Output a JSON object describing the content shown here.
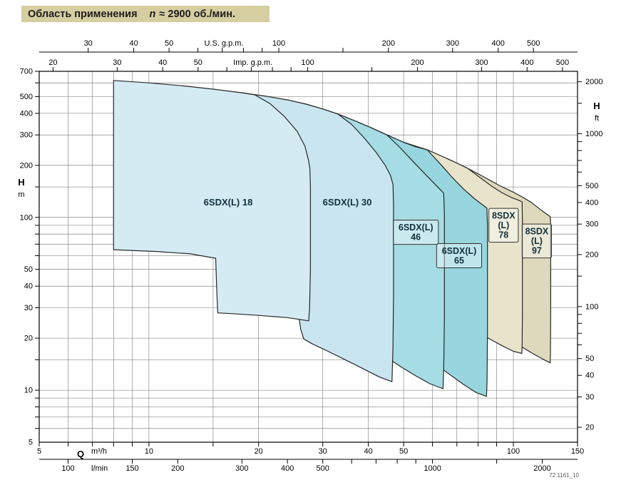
{
  "title": {
    "main": "Область применения",
    "n": "n",
    "rpm": "≈ 2900 об./мин."
  },
  "watermark": "72.1161_10",
  "chart_data": {
    "type": "area",
    "description": "Pump application range chart, log-log axes, head H vs flow Q at n ≈ 2900 rpm",
    "axes": {
      "q_range": [
        5,
        150
      ],
      "h_range": [
        5,
        700
      ],
      "top_us": {
        "title": "U.S. g.p.m.",
        "per_m3h": 4.403,
        "ticks": [
          30,
          40,
          50,
          60,
          70,
          80,
          90,
          100,
          150,
          200,
          300,
          400,
          500
        ],
        "labels": [
          30,
          40,
          50,
          100,
          200,
          300,
          400,
          500
        ]
      },
      "top_imp": {
        "title": "Imp. g.p.m.",
        "per_m3h": 3.666,
        "ticks": [
          20,
          30,
          40,
          50,
          60,
          70,
          80,
          90,
          100,
          150,
          200,
          300,
          400,
          500
        ],
        "labels": [
          20,
          30,
          40,
          50,
          100,
          200,
          300,
          400,
          500
        ]
      },
      "left_m": {
        "title_1": "H",
        "title_2": "m",
        "ticks": [
          6,
          7,
          8,
          9,
          10,
          15,
          20,
          30,
          40,
          50,
          60,
          70,
          80,
          90,
          100,
          150,
          200,
          300,
          400,
          500,
          600,
          700
        ],
        "labels": [
          700,
          500,
          400,
          300,
          200,
          100,
          50,
          40,
          30,
          20,
          10,
          5
        ]
      },
      "right_ft": {
        "title_1": "H",
        "title_2": "ft",
        "per_m": 3.281,
        "ticks": [
          20,
          30,
          40,
          50,
          60,
          70,
          80,
          90,
          100,
          150,
          200,
          300,
          400,
          500,
          600,
          700,
          800,
          900,
          1000,
          1500,
          2000
        ],
        "labels": [
          2000,
          1000,
          500,
          400,
          300,
          200,
          100,
          50,
          40,
          30,
          20
        ]
      },
      "bottom_m3h": {
        "title_q": "Q",
        "title_unit": "m³/h",
        "ticks": [
          5,
          6,
          7,
          8,
          9,
          10,
          15,
          20,
          30,
          40,
          50,
          60,
          70,
          80,
          90,
          100,
          150
        ],
        "labels": [
          5,
          10,
          20,
          30,
          40,
          50,
          100,
          150
        ]
      },
      "bottom_lmin": {
        "title_unit": "l/min",
        "per_m3h": 16.667,
        "ticks": [
          100,
          150,
          200,
          300,
          400,
          500,
          600,
          700,
          800,
          900,
          1000,
          1500,
          2000
        ],
        "labels": [
          100,
          150,
          200,
          300,
          400,
          500,
          1000,
          2000
        ]
      }
    },
    "grid": {
      "q_lines": [
        6,
        7,
        8,
        9,
        10,
        15,
        20,
        30,
        40,
        50,
        60,
        70,
        80,
        90,
        100
      ],
      "h_lines": [
        6,
        7,
        8,
        9,
        10,
        15,
        20,
        30,
        40,
        50,
        60,
        70,
        80,
        90,
        100,
        150,
        200,
        300,
        400,
        500,
        600
      ]
    },
    "series": [
      {
        "id": "8sdx97",
        "name": "8SDX (L) 97",
        "color": "#ded9bc",
        "boxed": true,
        "label_lines": [
          "8SDX",
          "(L)",
          "97"
        ],
        "label_at": [
          116,
          73
        ],
        "points": [
          [
            40,
            332
          ],
          [
            45,
            300
          ],
          [
            50,
            272
          ],
          [
            58,
            246
          ],
          [
            68,
            212
          ],
          [
            75,
            192
          ],
          [
            82,
            174
          ],
          [
            91.5,
            153
          ],
          [
            100,
            140
          ],
          [
            106,
            131
          ],
          [
            112,
            122
          ],
          [
            118,
            112
          ],
          [
            123,
            105
          ],
          [
            126.3,
            101
          ],
          [
            126.6,
            90
          ],
          [
            126.6,
            55
          ],
          [
            126.6,
            28
          ],
          [
            126.4,
            16
          ],
          [
            126.2,
            14.4
          ],
          [
            120,
            15.2
          ],
          [
            113,
            16.3
          ],
          [
            106,
            17.7
          ],
          [
            100,
            19
          ],
          [
            96,
            20.4
          ],
          [
            94,
            21.5
          ],
          [
            93.5,
            26
          ]
        ]
      },
      {
        "id": "8sdx78",
        "name": "8SDX (L) 78",
        "color": "#e8e4cb",
        "boxed": true,
        "label_lines": [
          "8SDX",
          "(L)",
          "78"
        ],
        "label_at": [
          94,
          90
        ],
        "points": [
          [
            30,
            420
          ],
          [
            33,
            396
          ],
          [
            37,
            360
          ],
          [
            41,
            328
          ],
          [
            45,
            300
          ],
          [
            50,
            272
          ],
          [
            54,
            256
          ],
          [
            58,
            246
          ],
          [
            63,
            228
          ],
          [
            68,
            212
          ],
          [
            75,
            192
          ],
          [
            81,
            170
          ],
          [
            87,
            152
          ],
          [
            93,
            139
          ],
          [
            99,
            130
          ],
          [
            103,
            126
          ],
          [
            105.7,
            123
          ],
          [
            105.9,
            95
          ],
          [
            105.9,
            55
          ],
          [
            105.9,
            28
          ],
          [
            105.7,
            18
          ],
          [
            105.5,
            16.3
          ],
          [
            100,
            16.8
          ],
          [
            94,
            17.9
          ],
          [
            88,
            19.3
          ],
          [
            82,
            21
          ],
          [
            78,
            22.6
          ],
          [
            76.5,
            24
          ],
          [
            76,
            28
          ]
        ]
      },
      {
        "id": "6sdx65",
        "name": "6SDX(L) 65",
        "color": "#97d6de",
        "boxed": true,
        "label_lines": [
          "6SDX(L)",
          "65"
        ],
        "label_at": [
          71,
          60
        ],
        "points": [
          [
            26,
            450
          ],
          [
            30,
            424
          ],
          [
            33,
            396
          ],
          [
            37,
            360
          ],
          [
            41,
            328
          ],
          [
            45,
            300
          ],
          [
            50,
            272
          ],
          [
            54,
            256
          ],
          [
            58,
            246
          ],
          [
            63,
            204
          ],
          [
            68,
            170
          ],
          [
            73,
            146
          ],
          [
            78,
            129
          ],
          [
            82,
            119
          ],
          [
            84.6,
            113
          ],
          [
            84.9,
            90
          ],
          [
            84.9,
            50
          ],
          [
            84.9,
            22
          ],
          [
            84.7,
            11
          ],
          [
            84.4,
            9.2
          ],
          [
            79,
            9.7
          ],
          [
            73,
            10.8
          ],
          [
            67,
            12.3
          ],
          [
            61,
            14.2
          ],
          [
            56,
            16.2
          ],
          [
            53,
            17.8
          ],
          [
            52.2,
            21
          ],
          [
            51.8,
            26
          ],
          [
            48,
            27.5
          ],
          [
            47.5,
            60
          ],
          [
            46.5,
            150
          ],
          [
            45,
            280
          ]
        ]
      },
      {
        "id": "6sdx46",
        "name": "6SDX(L) 46",
        "color": "#a6dce4",
        "boxed": true,
        "label_l_lines_note": "",
        "label_lines": [
          "6SDX(L)",
          "46"
        ],
        "label_at": [
          54,
          82
        ],
        "points": [
          [
            20,
            505
          ],
          [
            24,
            478
          ],
          [
            27,
            452
          ],
          [
            30,
            424
          ],
          [
            33,
            396
          ],
          [
            37,
            360
          ],
          [
            41,
            328
          ],
          [
            45,
            300
          ],
          [
            49,
            252
          ],
          [
            53,
            211
          ],
          [
            57,
            180
          ],
          [
            60.5,
            158
          ],
          [
            63,
            145
          ],
          [
            64.4,
            138
          ],
          [
            64.7,
            105
          ],
          [
            64.7,
            55
          ],
          [
            64.7,
            26
          ],
          [
            64.4,
            13
          ],
          [
            64.1,
            10.2
          ],
          [
            59,
            10.9
          ],
          [
            54,
            12.1
          ],
          [
            49,
            13.7
          ],
          [
            44.5,
            15.7
          ],
          [
            41,
            17.6
          ],
          [
            39.7,
            18.8
          ],
          [
            39.3,
            21
          ],
          [
            39.1,
            25
          ],
          [
            36.5,
            26.5
          ],
          [
            35,
            28
          ],
          [
            34.8,
            60
          ],
          [
            34.6,
            150
          ],
          [
            34.5,
            360
          ]
        ]
      },
      {
        "id": "6sdx30",
        "name": "6SDX(L) 30",
        "color": "#c9e6f0",
        "boxed": false,
        "label_lines": [
          "6SDX(L) 30"
        ],
        "label_at": [
          35,
          122
        ],
        "points": [
          [
            15.2,
            548
          ],
          [
            18,
            526
          ],
          [
            21,
            502
          ],
          [
            24,
            478
          ],
          [
            27,
            452
          ],
          [
            30,
            424
          ],
          [
            33,
            396
          ],
          [
            36,
            345
          ],
          [
            39,
            288
          ],
          [
            42,
            238
          ],
          [
            44.5,
            200
          ],
          [
            46,
            175
          ],
          [
            46.75,
            155
          ],
          [
            46.9,
            120
          ],
          [
            46.9,
            70
          ],
          [
            46.9,
            35
          ],
          [
            46.75,
            18
          ],
          [
            46.45,
            11.2
          ],
          [
            43,
            11.9
          ],
          [
            39,
            13.2
          ],
          [
            35,
            14.8
          ],
          [
            31,
            16.8
          ],
          [
            28,
            18.6
          ],
          [
            26.6,
            19.8
          ],
          [
            26.1,
            22.5
          ],
          [
            25.8,
            26.5
          ],
          [
            22,
            27.6
          ],
          [
            18,
            28.5
          ],
          [
            15.6,
            29
          ],
          [
            15.35,
            44
          ],
          [
            15.3,
            140
          ],
          [
            15.25,
            400
          ]
        ]
      },
      {
        "id": "6sdx18",
        "name": "6SDX(L) 18",
        "color": "#d4ebf4",
        "boxed": false,
        "label_lines": [
          "6SDX(L) 18"
        ],
        "label_at": [
          16.5,
          122
        ],
        "points": [
          [
            8,
            620
          ],
          [
            10,
            600
          ],
          [
            12.5,
            576
          ],
          [
            15,
            552
          ],
          [
            18,
            526
          ],
          [
            19.5,
            512
          ],
          [
            21.5,
            455
          ],
          [
            23.5,
            385
          ],
          [
            25.5,
            315
          ],
          [
            26.8,
            258
          ],
          [
            27.4,
            215
          ],
          [
            27.65,
            192
          ],
          [
            27.75,
            150
          ],
          [
            27.75,
            95
          ],
          [
            27.75,
            50
          ],
          [
            27.6,
            30
          ],
          [
            27.45,
            25.2
          ],
          [
            24,
            26.3
          ],
          [
            20,
            27.1
          ],
          [
            17,
            27.7
          ],
          [
            15.45,
            28
          ],
          [
            15.35,
            38
          ],
          [
            15.25,
            58
          ],
          [
            13,
            61.5
          ],
          [
            10.5,
            63.5
          ],
          [
            8,
            65
          ]
        ]
      }
    ]
  }
}
